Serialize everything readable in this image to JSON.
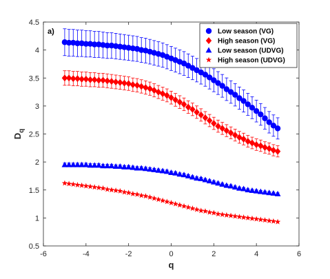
{
  "chart_data": {
    "type": "scatter",
    "panel_label": "a)",
    "xlabel": "q",
    "ylabel": "D",
    "ylabel_subscript": "q",
    "xlim": [
      -6,
      6
    ],
    "ylim": [
      0.5,
      4.5
    ],
    "xticks": [
      "-6",
      "-4",
      "-2",
      "0",
      "2",
      "4",
      "6"
    ],
    "yticks": [
      "0.5",
      "1",
      "1.5",
      "2",
      "2.5",
      "3",
      "3.5",
      "4",
      "4.5"
    ],
    "grid": false,
    "legend_position": "top-right",
    "x": [
      -5,
      -4.8,
      -4.6,
      -4.4,
      -4.2,
      -4,
      -3.8,
      -3.6,
      -3.4,
      -3.2,
      -3,
      -2.8,
      -2.6,
      -2.4,
      -2.2,
      -2,
      -1.8,
      -1.6,
      -1.4,
      -1.2,
      -1,
      -0.8,
      -0.6,
      -0.4,
      -0.2,
      0,
      0.2,
      0.4,
      0.6,
      0.8,
      1,
      1.2,
      1.4,
      1.6,
      1.8,
      2,
      2.2,
      2.4,
      2.6,
      2.8,
      3,
      3.2,
      3.4,
      3.6,
      3.8,
      4,
      4.2,
      4.4,
      4.6,
      4.8,
      5
    ],
    "series": [
      {
        "name": "Low season (VG)",
        "marker": "circle",
        "color": "#0000ff",
        "values": [
          4.14,
          4.13,
          4.13,
          4.12,
          4.12,
          4.11,
          4.11,
          4.1,
          4.1,
          4.09,
          4.08,
          4.08,
          4.07,
          4.06,
          4.05,
          4.04,
          4.03,
          4.02,
          4.0,
          3.99,
          3.97,
          3.95,
          3.93,
          3.91,
          3.88,
          3.85,
          3.82,
          3.79,
          3.76,
          3.72,
          3.68,
          3.64,
          3.6,
          3.56,
          3.51,
          3.46,
          3.41,
          3.36,
          3.3,
          3.25,
          3.2,
          3.14,
          3.09,
          3.03,
          2.97,
          2.91,
          2.85,
          2.78,
          2.71,
          2.65,
          2.6
        ],
        "error_min": 0.19,
        "error_max": 0.24
      },
      {
        "name": "High season (VG)",
        "marker": "diamond",
        "color": "#ff0000",
        "values": [
          3.5,
          3.5,
          3.49,
          3.49,
          3.48,
          3.48,
          3.47,
          3.47,
          3.46,
          3.46,
          3.45,
          3.44,
          3.43,
          3.42,
          3.41,
          3.4,
          3.38,
          3.37,
          3.35,
          3.33,
          3.31,
          3.28,
          3.25,
          3.22,
          3.19,
          3.15,
          3.11,
          3.07,
          3.03,
          2.98,
          2.94,
          2.89,
          2.84,
          2.79,
          2.74,
          2.69,
          2.64,
          2.6,
          2.56,
          2.52,
          2.48,
          2.44,
          2.41,
          2.37,
          2.34,
          2.31,
          2.29,
          2.26,
          2.24,
          2.21,
          2.19
        ],
        "error_min": 0.1,
        "error_max": 0.13
      },
      {
        "name": "Low season (UDVG)",
        "marker": "triangle",
        "color": "#0000ff",
        "values": [
          1.95,
          1.95,
          1.95,
          1.95,
          1.95,
          1.95,
          1.94,
          1.94,
          1.94,
          1.93,
          1.93,
          1.93,
          1.92,
          1.92,
          1.91,
          1.91,
          1.9,
          1.89,
          1.89,
          1.88,
          1.87,
          1.86,
          1.85,
          1.84,
          1.83,
          1.81,
          1.8,
          1.78,
          1.77,
          1.75,
          1.73,
          1.71,
          1.7,
          1.68,
          1.66,
          1.64,
          1.62,
          1.6,
          1.58,
          1.57,
          1.55,
          1.53,
          1.52,
          1.5,
          1.49,
          1.48,
          1.47,
          1.46,
          1.45,
          1.44,
          1.43
        ],
        "error_min": 0.02,
        "error_max": 0.03
      },
      {
        "name": "High season (UDVG)",
        "marker": "star",
        "color": "#ff0000",
        "values": [
          1.62,
          1.61,
          1.6,
          1.59,
          1.58,
          1.57,
          1.56,
          1.55,
          1.54,
          1.53,
          1.51,
          1.5,
          1.49,
          1.48,
          1.46,
          1.45,
          1.43,
          1.42,
          1.4,
          1.39,
          1.37,
          1.35,
          1.33,
          1.31,
          1.29,
          1.27,
          1.25,
          1.23,
          1.21,
          1.19,
          1.17,
          1.15,
          1.13,
          1.12,
          1.1,
          1.09,
          1.07,
          1.06,
          1.05,
          1.04,
          1.03,
          1.02,
          1.01,
          1.0,
          0.99,
          0.98,
          0.97,
          0.96,
          0.95,
          0.94,
          0.93
        ],
        "error_min": 0.0,
        "error_max": 0.0
      }
    ]
  }
}
